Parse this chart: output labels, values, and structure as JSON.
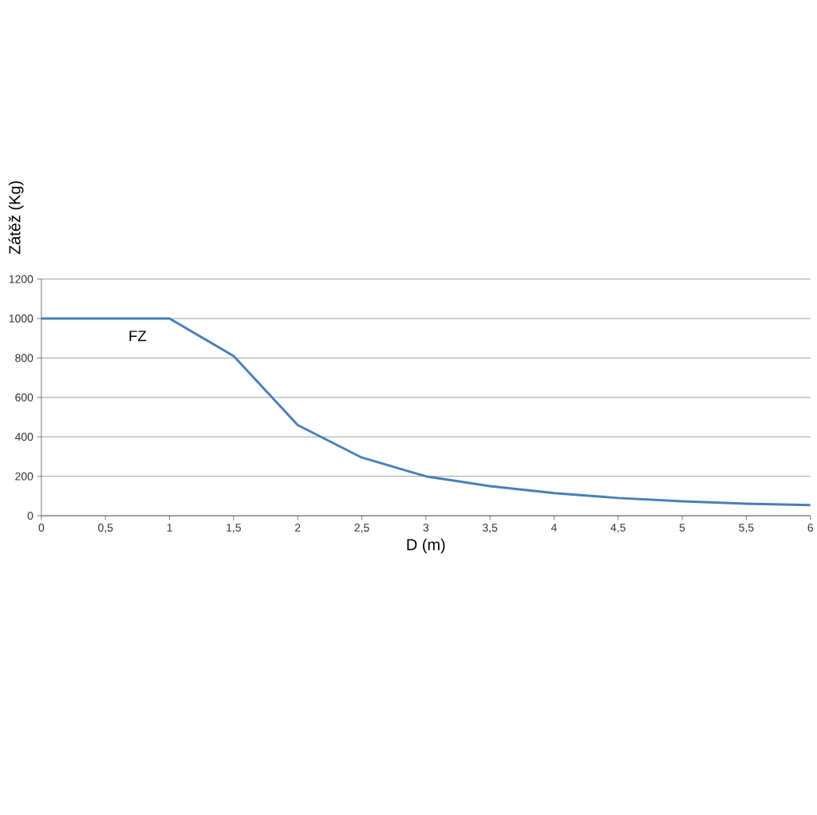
{
  "chart_data": {
    "type": "line",
    "xlabel": "D (m)",
    "ylabel": "Zátěž (Kg)",
    "x": [
      0,
      0.5,
      1,
      1.5,
      2,
      2.5,
      3,
      3.5,
      4,
      4.5,
      5,
      5.5,
      6
    ],
    "series": [
      {
        "name": "FZ",
        "color": "#4a7ebb",
        "values": [
          1000,
          1000,
          1000,
          810,
          460,
          295,
          200,
          150,
          115,
          90,
          73,
          61,
          54
        ]
      }
    ],
    "xlim": [
      0,
      6
    ],
    "xticks": [
      0,
      {
        "value": 0.5,
        "label": "0,5"
      },
      1,
      {
        "value": 1.5,
        "label": "1,5"
      },
      2,
      {
        "value": 2.5,
        "label": "2,5"
      },
      3,
      {
        "value": 3.5,
        "label": "3,5"
      },
      4,
      {
        "value": 4.5,
        "label": "4,5"
      },
      5,
      {
        "value": 5.5,
        "label": "5,5"
      },
      6
    ],
    "ylim": [
      0,
      1200
    ],
    "yticks": [
      0,
      200,
      400,
      600,
      800,
      1000,
      1200
    ],
    "grid": "y",
    "legend": false,
    "marker": "none",
    "line_style": "solid"
  }
}
